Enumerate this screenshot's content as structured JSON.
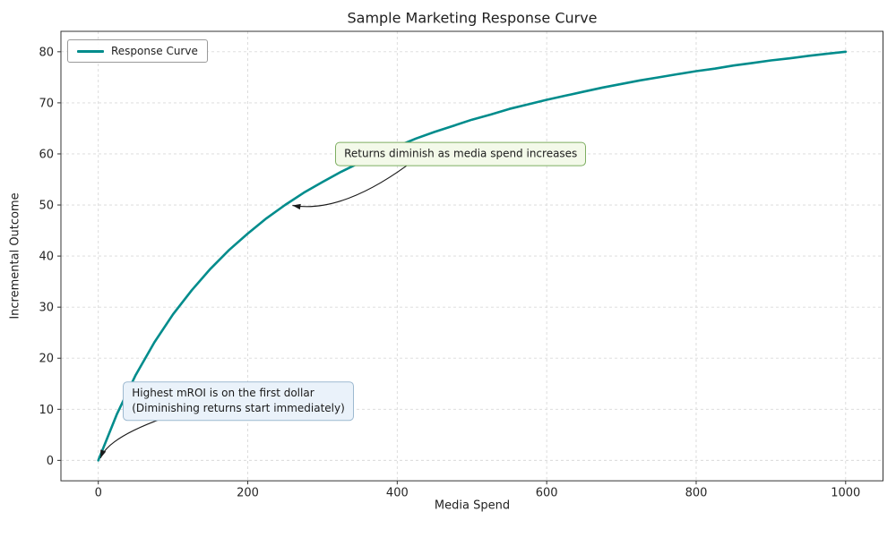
{
  "chart_data": {
    "type": "line",
    "title": "Sample Marketing Response Curve",
    "xlabel": "Media Spend",
    "ylabel": "Incremental Outcome",
    "legend": [
      "Response Curve"
    ],
    "legend_loc": "upper left",
    "grid": true,
    "grid_style": "dashed",
    "xlim": [
      -50,
      1050
    ],
    "ylim": [
      -4,
      84
    ],
    "xticks": [
      0,
      200,
      400,
      600,
      800,
      1000
    ],
    "yticks": [
      0,
      10,
      20,
      30,
      40,
      50,
      60,
      70,
      80
    ],
    "colors": {
      "curve": "#008c8c",
      "grid": "#d9d9d9",
      "spine": "#333333",
      "text": "#1f1f1f",
      "arrow": "#1a1a1a"
    },
    "series": [
      {
        "name": "Response Curve",
        "x": [
          0,
          25,
          50,
          75,
          100,
          125,
          150,
          175,
          200,
          225,
          250,
          275,
          300,
          325,
          350,
          375,
          400,
          425,
          450,
          475,
          500,
          525,
          550,
          575,
          600,
          625,
          650,
          675,
          700,
          725,
          750,
          775,
          800,
          825,
          850,
          875,
          900,
          925,
          950,
          975,
          1000
        ],
        "y": [
          0,
          9.1,
          16.7,
          23.1,
          28.6,
          33.3,
          37.5,
          41.2,
          44.4,
          47.4,
          50,
          52.4,
          54.5,
          56.5,
          58.3,
          60,
          61.5,
          63,
          64.3,
          65.5,
          66.7,
          67.7,
          68.8,
          69.7,
          70.6,
          71.4,
          72.2,
          73,
          73.7,
          74.4,
          75,
          75.6,
          76.2,
          76.7,
          77.3,
          77.8,
          78.3,
          78.7,
          79.2,
          79.6,
          80
        ]
      }
    ],
    "annotations": [
      {
        "text": "Returns diminish as media spend increases",
        "target_xy": [
          255,
          50
        ],
        "text_xy": [
          317,
          60
        ],
        "bg": "#f3f9e9",
        "border": "#7eae62"
      },
      {
        "text": "Highest mROI is on the first dollar\n(Diminishing returns start immediately)",
        "target_xy": [
          0,
          0
        ],
        "text_xy": [
          33,
          11.6
        ],
        "bg": "#eaf2fa",
        "border": "#9db9d0"
      }
    ]
  }
}
